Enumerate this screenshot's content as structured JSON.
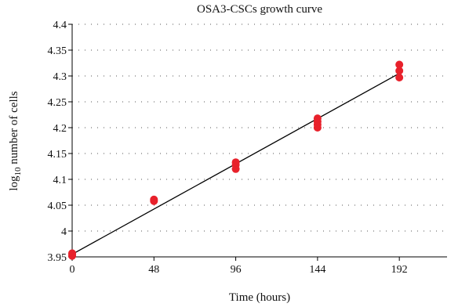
{
  "chart_data": {
    "type": "scatter",
    "title": "OSA3-CSCs growth curve",
    "xlabel": "Time (hours)",
    "ylabel_prefix": "log",
    "ylabel_sub": "10",
    "ylabel_suffix": " number of cells",
    "xlim": [
      0,
      220
    ],
    "ylim": [
      3.95,
      4.4
    ],
    "xticks": [
      0,
      48,
      96,
      144,
      192
    ],
    "xtick_labels": [
      "0",
      "48",
      "96",
      "144",
      "192"
    ],
    "yticks": [
      3.95,
      4.0,
      4.05,
      4.1,
      4.15,
      4.2,
      4.25,
      4.3,
      4.35,
      4.4
    ],
    "ytick_labels": [
      "3.95",
      "4",
      "4.05",
      "4.1",
      "4.15",
      "4.2",
      "4.25",
      "4.3",
      "4.35",
      "4.4"
    ],
    "grid": "dotted horizontal",
    "series": [
      {
        "points": [
          [
            0,
            3.952
          ],
          [
            0,
            3.955
          ],
          [
            0,
            3.957
          ],
          [
            48,
            4.058
          ],
          [
            48,
            4.061
          ],
          [
            96,
            4.12
          ],
          [
            96,
            4.128
          ],
          [
            96,
            4.133
          ],
          [
            144,
            4.2
          ],
          [
            144,
            4.206
          ],
          [
            144,
            4.212
          ],
          [
            144,
            4.218
          ],
          [
            192,
            4.297
          ],
          [
            192,
            4.31
          ],
          [
            192,
            4.322
          ]
        ],
        "color": "#e8212b"
      }
    ],
    "trendline": {
      "x": [
        0,
        192
      ],
      "y": [
        3.955,
        4.305
      ],
      "color": "#000000"
    }
  }
}
